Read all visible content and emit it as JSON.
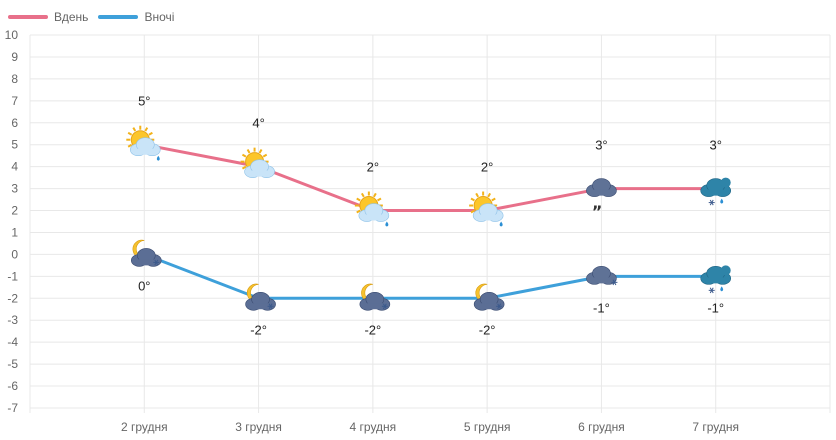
{
  "legend": {
    "day_label": "Вдень",
    "night_label": "Вночі"
  },
  "colors": {
    "day": "#e8708a",
    "night": "#3ea0da",
    "grid": "#e8e8e8"
  },
  "chart_data": {
    "type": "line",
    "title": "",
    "xlabel": "",
    "ylabel": "",
    "ylim": [
      -7,
      10
    ],
    "yticks": [
      10,
      9,
      8,
      7,
      6,
      5,
      4,
      3,
      2,
      1,
      0,
      -1,
      -2,
      -3,
      -4,
      -5,
      -6,
      -7
    ],
    "categories": [
      "2 грудня",
      "3 грудня",
      "4 грудня",
      "5 грудня",
      "6 грудня",
      "7 грудня"
    ],
    "grid": true,
    "legend_position": "top-left",
    "series": [
      {
        "name": "Вдень",
        "values": [
          5,
          4,
          2,
          2,
          3,
          3
        ],
        "labels": [
          "5°",
          "4°",
          "2°",
          "2°",
          "3°",
          "3°"
        ],
        "icons": [
          "sun-cloud-rain-icon",
          "sun-cloud-icon",
          "sun-cloud-rain-icon",
          "sun-cloud-rain-icon",
          "dark-cloud-drizzle-icon",
          "cloud-rain-snow-icon"
        ]
      },
      {
        "name": "Вночі",
        "values": [
          0,
          -2,
          -2,
          -2,
          -1,
          -1
        ],
        "labels": [
          "0°",
          "-2°",
          "-2°",
          "-2°",
          "-1°",
          "-1°"
        ],
        "icons": [
          "moon-cloud-snow-icon",
          "moon-cloud-snow-icon",
          "moon-cloud-snow-icon",
          "moon-cloud-snow-icon",
          "dark-cloud-snow-icon",
          "cloud-rain-snow-icon"
        ]
      }
    ]
  }
}
